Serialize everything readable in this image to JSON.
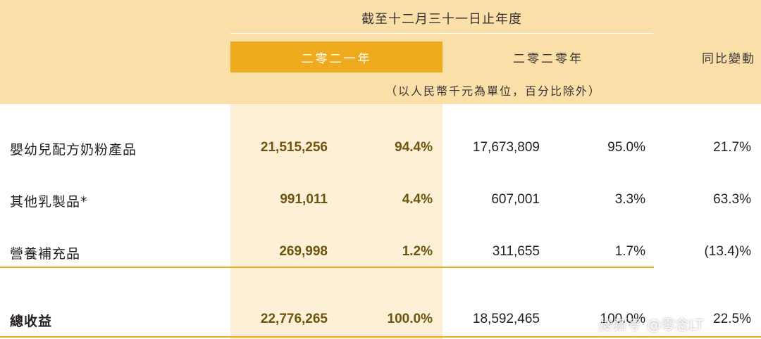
{
  "header": {
    "period_title": "截至十二月三十一日止年度",
    "year_2021": "二零二一年",
    "year_2020": "二零二零年",
    "yoy_change": "同比變動",
    "unit_note": "（以人民幣千元為單位，百分比除外）"
  },
  "rows": [
    {
      "label": "嬰幼兒配方奶粉產品",
      "amount_2021": "21,515,256",
      "pct_2021": "94.4%",
      "amount_2020": "17,673,809",
      "pct_2020": "95.0%",
      "yoy": "21.7%"
    },
    {
      "label": "其他乳製品*",
      "amount_2021": "991,011",
      "pct_2021": "4.4%",
      "amount_2020": "607,001",
      "pct_2020": "3.3%",
      "yoy": "63.3%"
    },
    {
      "label": "營養補充品",
      "amount_2021": "269,998",
      "pct_2021": "1.2%",
      "amount_2020": "311,655",
      "pct_2020": "1.7%",
      "yoy": "(13.4)%"
    }
  ],
  "total": {
    "label": "總收益",
    "amount_2021": "22,776,265",
    "pct_2021": "100.0%",
    "amount_2020": "18,592,465",
    "pct_2020": "100.0%",
    "yoy": "22.5%"
  },
  "watermark": {
    "text": "搜狐号",
    "handle": "@零念LT"
  },
  "colors": {
    "header_band": "#fbdfa8",
    "year_box": "#eeab1e",
    "highlight_column": "#fdf0d6",
    "bold_value": "#6d5510"
  }
}
